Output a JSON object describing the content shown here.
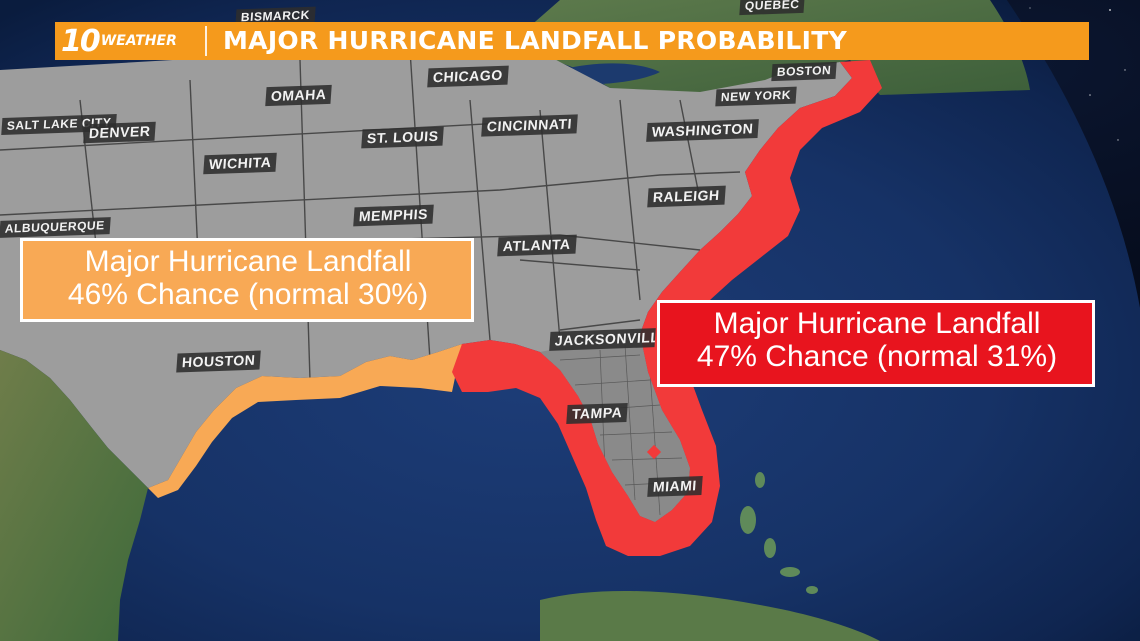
{
  "header": {
    "logo_number": "10",
    "logo_word": "WEATHER",
    "title": "MAJOR HURRICANE LANDFALL PROBABILITY"
  },
  "callouts": {
    "gulf": {
      "line1": "Major Hurricane Landfall",
      "line2": "46% Chance (normal 30%)",
      "color": "#f8a955",
      "landfall_chance_percent": 46,
      "normal_percent": 30
    },
    "east": {
      "line1": "Major Hurricane Landfall",
      "line2": "47% Chance (normal 31%)",
      "color": "#e8141e",
      "landfall_chance_percent": 47,
      "normal_percent": 31
    }
  },
  "cities": {
    "quebec": "QUÉBEC",
    "bismarck": "BISMARCK",
    "chicago": "CHICAGO",
    "boston": "BOSTON",
    "new_york": "NEW YORK",
    "omaha": "OMAHA",
    "salt_lake_city": "SALT LAKE CITY",
    "denver": "DENVER",
    "st_louis": "ST. LOUIS",
    "cincinnati": "CINCINNATI",
    "washington": "WASHINGTON",
    "wichita": "WICHITA",
    "raleigh": "RALEIGH",
    "memphis": "MEMPHIS",
    "albuquerque": "ALBUQUERQUE",
    "atlanta": "ATLANTA",
    "jacksonville": "JACKSONVILLE",
    "houston": "HOUSTON",
    "tampa": "TAMPA",
    "miami": "MIAMI"
  },
  "colors": {
    "gulf_zone": "#f8a955",
    "east_zone": "#f23a3a",
    "header": "#f59a1c",
    "land_us": "#9d9d9d",
    "ocean": "#16305e"
  }
}
